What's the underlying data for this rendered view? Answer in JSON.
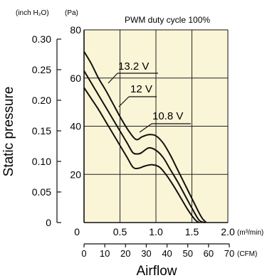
{
  "chart_data": {
    "type": "line",
    "title": "PWM duty cycle 100%",
    "xlabel": "Airflow",
    "ylabel": "Static pressure",
    "x_unit_primary": "(m³/min)",
    "x_unit_secondary": "(CFM)",
    "y_unit_left": "(inch H₂O)",
    "y_unit_right": "(Pa)",
    "xlim": [
      0,
      2.0
    ],
    "ylim": [
      0,
      80
    ],
    "grid": true,
    "x_ticks": [
      "0",
      "0.5",
      "1.0",
      "1.5",
      "2.0"
    ],
    "x_secondary_ticks": [
      "0",
      "10",
      "20",
      "30",
      "40",
      "50",
      "60",
      "70"
    ],
    "y_ticks_pa": [
      "20",
      "40",
      "60",
      "80"
    ],
    "y_ticks_inch": [
      "0",
      "0.05",
      "0.10",
      "0.15",
      "0.20",
      "0.25",
      "0.30"
    ],
    "series": [
      {
        "name": "13.2 V",
        "x": [
          0,
          0.1,
          0.2,
          0.3,
          0.4,
          0.5,
          0.6,
          0.7,
          0.75,
          0.8,
          0.9,
          1.0,
          1.1,
          1.2,
          1.3,
          1.4,
          1.5,
          1.6,
          1.65,
          1.7
        ],
        "y": [
          71,
          66,
          60,
          55,
          49.5,
          44,
          39,
          35,
          34.5,
          35.5,
          36.5,
          36,
          33,
          28,
          22,
          16,
          10,
          4,
          1.5,
          0
        ]
      },
      {
        "name": "12 V",
        "x": [
          0,
          0.1,
          0.2,
          0.3,
          0.4,
          0.5,
          0.6,
          0.68,
          0.75,
          0.8,
          0.9,
          1.0,
          1.1,
          1.2,
          1.3,
          1.4,
          1.5,
          1.6,
          1.68
        ],
        "y": [
          63,
          58,
          53,
          48,
          43,
          38,
          33,
          29,
          28.5,
          29,
          31,
          30,
          27,
          22,
          17,
          11.5,
          6,
          1,
          0
        ]
      },
      {
        "name": "10.8 V",
        "x": [
          0,
          0.1,
          0.2,
          0.3,
          0.4,
          0.5,
          0.6,
          0.68,
          0.75,
          0.85,
          0.95,
          1.05,
          1.15,
          1.25,
          1.35,
          1.45,
          1.55,
          1.6
        ],
        "y": [
          56,
          51.5,
          47,
          42,
          37,
          32,
          27,
          23,
          22.5,
          23.5,
          24,
          23,
          19.5,
          15,
          10,
          5,
          1,
          0
        ]
      }
    ],
    "labels": {
      "unit_inch": "(inch H₂O)",
      "unit_pa": "(Pa)"
    }
  }
}
